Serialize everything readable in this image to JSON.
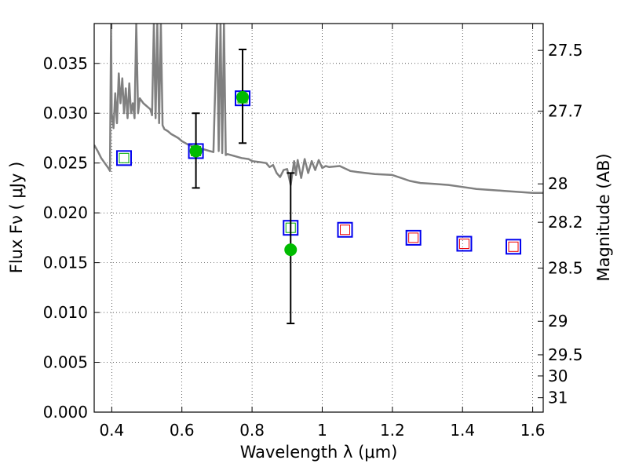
{
  "chart_data": {
    "type": "scatter",
    "xlabel": "Wavelength  λ (μm)",
    "ylabel": "Flux  Fν  ( μJy )",
    "ylabel_right": "Magnitude (AB)",
    "xlim": [
      0.35,
      1.63
    ],
    "ylim": [
      0.0,
      0.039
    ],
    "grid": true,
    "x_ticks": [
      0.4,
      0.6,
      0.8,
      1.0,
      1.2,
      1.4,
      1.6
    ],
    "x_tick_labels": [
      "0.4",
      "0.6",
      "0.8",
      "1",
      "1.2",
      "1.4",
      "1.6"
    ],
    "y_ticks": [
      0.0,
      0.005,
      0.01,
      0.015,
      0.02,
      0.025,
      0.03,
      0.035
    ],
    "y_tick_labels": [
      "0.000",
      "0.005",
      "0.010",
      "0.015",
      "0.020",
      "0.025",
      "0.030",
      "0.035"
    ],
    "right_ticks": [
      {
        "label": "27.5",
        "mag": 27.5
      },
      {
        "label": "27.7",
        "mag": 27.7
      },
      {
        "label": "28",
        "mag": 28.0
      },
      {
        "label": "28.2",
        "mag": 28.2
      },
      {
        "label": "28.5",
        "mag": 28.5
      },
      {
        "label": "29",
        "mag": 29.0
      },
      {
        "label": "29.5",
        "mag": 29.5
      },
      {
        "label": "30",
        "mag": 30.0
      },
      {
        "label": "31",
        "mag": 31.0
      }
    ],
    "series": [
      {
        "kind": "line",
        "color": "#808080",
        "points": [
          [
            0.35,
            0.0268
          ],
          [
            0.36,
            0.0262
          ],
          [
            0.37,
            0.0255
          ],
          [
            0.38,
            0.025
          ],
          [
            0.39,
            0.0245
          ],
          [
            0.395,
            0.0242
          ],
          [
            0.398,
            0.039
          ],
          [
            0.4,
            0.03
          ],
          [
            0.405,
            0.0285
          ],
          [
            0.41,
            0.032
          ],
          [
            0.415,
            0.029
          ],
          [
            0.42,
            0.034
          ],
          [
            0.425,
            0.031
          ],
          [
            0.43,
            0.0335
          ],
          [
            0.435,
            0.03
          ],
          [
            0.44,
            0.0325
          ],
          [
            0.445,
            0.0295
          ],
          [
            0.45,
            0.033
          ],
          [
            0.455,
            0.03
          ],
          [
            0.46,
            0.031
          ],
          [
            0.465,
            0.0295
          ],
          [
            0.47,
            0.039
          ],
          [
            0.475,
            0.03
          ],
          [
            0.48,
            0.0315
          ],
          [
            0.49,
            0.031
          ],
          [
            0.5,
            0.0307
          ],
          [
            0.51,
            0.0304
          ],
          [
            0.515,
            0.0298
          ],
          [
            0.52,
            0.039
          ],
          [
            0.525,
            0.0295
          ],
          [
            0.53,
            0.039
          ],
          [
            0.535,
            0.029
          ],
          [
            0.54,
            0.039
          ],
          [
            0.545,
            0.0288
          ],
          [
            0.55,
            0.0284
          ],
          [
            0.56,
            0.0282
          ],
          [
            0.57,
            0.0279
          ],
          [
            0.58,
            0.0277
          ],
          [
            0.59,
            0.0275
          ],
          [
            0.6,
            0.0272
          ],
          [
            0.61,
            0.027
          ],
          [
            0.62,
            0.0268
          ],
          [
            0.64,
            0.0266
          ],
          [
            0.66,
            0.0264
          ],
          [
            0.68,
            0.0262
          ],
          [
            0.69,
            0.0261
          ],
          [
            0.7,
            0.039
          ],
          [
            0.705,
            0.0262
          ],
          [
            0.71,
            0.039
          ],
          [
            0.715,
            0.026
          ],
          [
            0.72,
            0.039
          ],
          [
            0.725,
            0.0258
          ],
          [
            0.73,
            0.0259
          ],
          [
            0.75,
            0.0257
          ],
          [
            0.77,
            0.0255
          ],
          [
            0.79,
            0.0254
          ],
          [
            0.8,
            0.0252
          ],
          [
            0.82,
            0.0251
          ],
          [
            0.84,
            0.025
          ],
          [
            0.85,
            0.0246
          ],
          [
            0.86,
            0.0248
          ],
          [
            0.87,
            0.024
          ],
          [
            0.88,
            0.0236
          ],
          [
            0.89,
            0.0243
          ],
          [
            0.9,
            0.0244
          ],
          [
            0.91,
            0.0228
          ],
          [
            0.92,
            0.0252
          ],
          [
            0.925,
            0.0238
          ],
          [
            0.93,
            0.0253
          ],
          [
            0.94,
            0.0235
          ],
          [
            0.95,
            0.0254
          ],
          [
            0.96,
            0.024
          ],
          [
            0.97,
            0.0252
          ],
          [
            0.98,
            0.0243
          ],
          [
            0.99,
            0.0253
          ],
          [
            1.0,
            0.0245
          ],
          [
            1.01,
            0.0247
          ],
          [
            1.02,
            0.0246
          ],
          [
            1.05,
            0.0247
          ],
          [
            1.08,
            0.0242
          ],
          [
            1.1,
            0.0241
          ],
          [
            1.15,
            0.0239
          ],
          [
            1.2,
            0.0238
          ],
          [
            1.25,
            0.0232
          ],
          [
            1.28,
            0.023
          ],
          [
            1.32,
            0.0229
          ],
          [
            1.36,
            0.0228
          ],
          [
            1.4,
            0.0226
          ],
          [
            1.44,
            0.0224
          ],
          [
            1.48,
            0.0223
          ],
          [
            1.52,
            0.0222
          ],
          [
            1.56,
            0.0221
          ],
          [
            1.6,
            0.022
          ],
          [
            1.63,
            0.022
          ]
        ]
      },
      {
        "kind": "squares-outer",
        "color": "#0000ee",
        "x": [
          0.435,
          0.64,
          0.773,
          0.91,
          1.065,
          1.26,
          1.405,
          1.545
        ],
        "y": [
          0.0255,
          0.0262,
          0.0315,
          0.0185,
          0.0183,
          0.0175,
          0.0169,
          0.0166
        ]
      },
      {
        "kind": "squares-inner",
        "colors": [
          "#00aa00",
          "#00aa00",
          "#00aa00",
          "#00aa00",
          "#ee0000",
          "#ee0000",
          "#ee0000",
          "#ee0000"
        ],
        "x": [
          0.435,
          0.64,
          0.773,
          0.91,
          1.065,
          1.26,
          1.405,
          1.545
        ],
        "y": [
          0.0255,
          0.0262,
          0.0315,
          0.0185,
          0.0183,
          0.0175,
          0.0169,
          0.0166
        ]
      },
      {
        "kind": "points-errorbars",
        "color": "#00bb00",
        "x": [
          0.64,
          0.773,
          0.91
        ],
        "y": [
          0.0262,
          0.0316,
          0.0163
        ],
        "y_low": [
          0.0225,
          0.027,
          0.0089
        ],
        "y_high": [
          0.03,
          0.0364,
          0.024
        ]
      }
    ]
  }
}
